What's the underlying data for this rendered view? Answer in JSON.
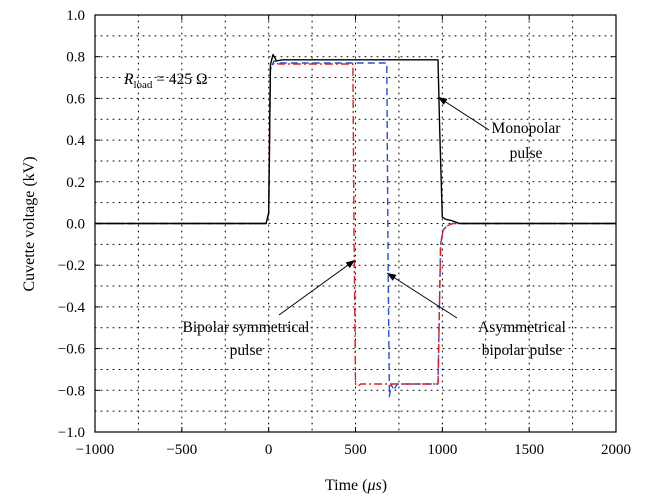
{
  "chart_data": {
    "type": "line",
    "title": "",
    "xlabel": "Time (μs)",
    "xlabel_prefix": "Time (",
    "xlabel_unit": "μs",
    "xlabel_suffix": ")",
    "ylabel": "Cuvette voltage (kV)",
    "xlim": [
      -1000,
      2000
    ],
    "ylim": [
      -1.0,
      1.0
    ],
    "xticks": [
      -1000,
      -500,
      0,
      500,
      1000,
      1500,
      2000
    ],
    "xtick_labels": [
      "−1000",
      "−500",
      "0",
      "500",
      "1000",
      "1500",
      "2000"
    ],
    "yticks": [
      -1.0,
      -0.8,
      -0.6,
      -0.4,
      -0.2,
      0.0,
      0.2,
      0.4,
      0.6,
      0.8,
      1.0
    ],
    "ytick_labels": [
      "−1.0",
      "−0.8",
      "−0.6",
      "−0.4",
      "−0.2",
      "0.0",
      "0.2",
      "0.4",
      "0.6",
      "0.8",
      "1.0"
    ],
    "grid": true,
    "grid_minor_x": [
      -750,
      -250,
      250,
      750,
      1250,
      1750
    ],
    "grid_minor_y": [
      -0.9,
      -0.7,
      -0.5,
      -0.3,
      -0.1,
      0.1,
      0.3,
      0.5,
      0.7,
      0.9
    ],
    "series": [
      {
        "color": "#000000",
        "dash": "",
        "x": [
          -1000,
          -15,
          0,
          10,
          25,
          45,
          80,
          960,
          975,
          985,
          1000,
          1020,
          1050,
          1100,
          2000
        ],
        "y": [
          0.0,
          0.0,
          0.05,
          0.76,
          0.81,
          0.78,
          0.785,
          0.785,
          0.785,
          0.45,
          0.03,
          0.02,
          0.015,
          0.0,
          0.0
        ]
      },
      {
        "color": "#2a4fd6",
        "dash": "7 4",
        "x": [
          -1000,
          -15,
          0,
          10,
          30,
          60,
          680,
          688,
          695,
          705,
          720,
          740,
          960,
          975,
          990,
          1005,
          1030,
          1060,
          1100,
          2000
        ],
        "y": [
          0.0,
          0.0,
          0.05,
          0.74,
          0.78,
          0.77,
          0.77,
          -0.2,
          -0.83,
          -0.77,
          -0.8,
          -0.77,
          -0.77,
          -0.77,
          -0.1,
          -0.03,
          -0.01,
          0.0,
          0.0,
          0.0
        ]
      },
      {
        "color": "#e0201e",
        "dash": "8 3 2 3",
        "x": [
          -1000,
          -15,
          0,
          10,
          30,
          60,
          485,
          492,
          500,
          515,
          530,
          560,
          960,
          975,
          990,
          1005,
          1030,
          1060,
          1100,
          2000
        ],
        "y": [
          0.0,
          0.0,
          0.05,
          0.74,
          0.77,
          0.765,
          0.765,
          -0.1,
          -0.77,
          -0.78,
          -0.77,
          -0.77,
          -0.77,
          -0.77,
          -0.1,
          -0.03,
          -0.01,
          0.0,
          0.0,
          0.0
        ]
      }
    ],
    "annotations": [
      {
        "lines": [
          "Monopolar",
          "pulse"
        ]
      },
      {
        "lines": [
          "Asymmetrical",
          "bipolar pulse"
        ]
      },
      {
        "lines": [
          "Bipolar symmetrical",
          "pulse"
        ]
      }
    ],
    "rload_R": "R",
    "rload_sub": "load",
    "rload_rest": " = 425 Ω"
  }
}
